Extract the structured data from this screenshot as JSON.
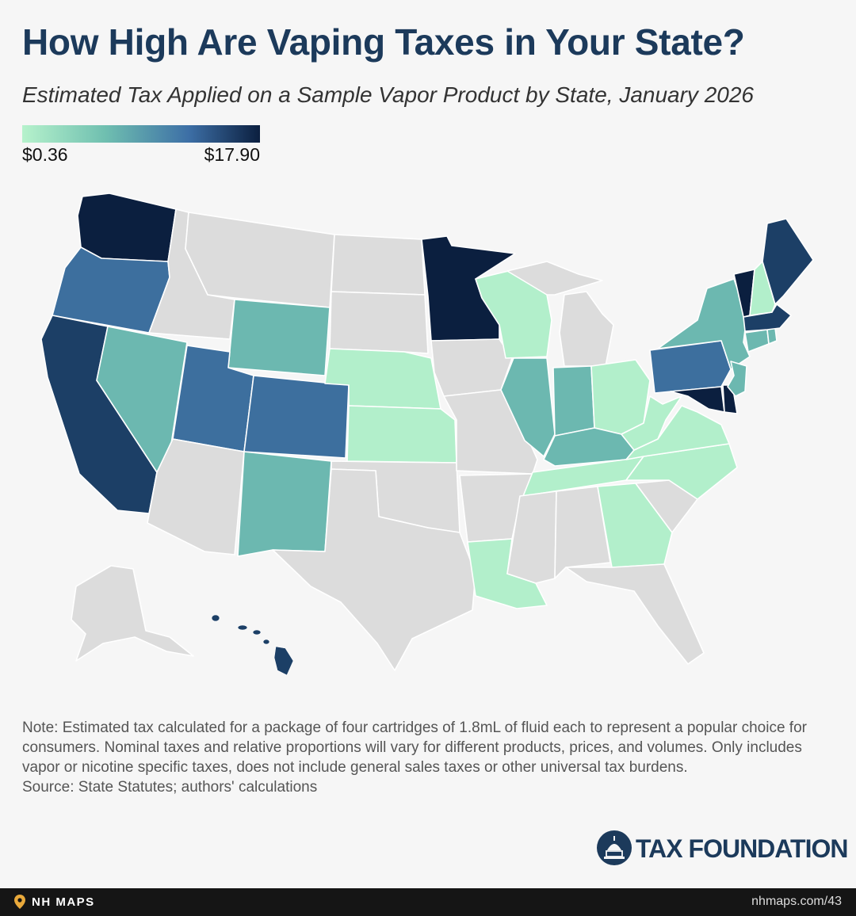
{
  "title": "How High Are Vaping Taxes in Your State?",
  "subtitle": "Estimated Tax Applied on a Sample Vapor Product by State, January 2026",
  "legend": {
    "min_label": "$0.36",
    "max_label": "$17.90",
    "min_value": 0.36,
    "max_value": 17.9,
    "gradient_colors": [
      "#b6f2cc",
      "#6fbfb0",
      "#3d6fa6",
      "#0b1f3f"
    ]
  },
  "map": {
    "no_tax_color": "#dcdcdc",
    "states_by_shade": {
      "darkest": [
        "WA",
        "MN",
        "VT",
        "MD",
        "DE"
      ],
      "dark": [
        "CA",
        "ME",
        "MA",
        "HI"
      ],
      "medium": [
        "OR",
        "UT",
        "CO",
        "PA"
      ],
      "medium_light": [
        "IL",
        "NV",
        "NY",
        "KY",
        "IN",
        "RI",
        "CT",
        "NJ",
        "WY",
        "NM"
      ],
      "light": [
        "NE",
        "KS",
        "WI",
        "OH",
        "WV",
        "VA",
        "NC",
        "TN",
        "GA",
        "LA",
        "NH"
      ],
      "no_tax": [
        "MT",
        "ID",
        "ND",
        "SD",
        "IA",
        "MO",
        "OK",
        "TX",
        "AR",
        "MS",
        "AL",
        "FL",
        "SC",
        "MI",
        "AZ",
        "AK"
      ]
    }
  },
  "note": {
    "text": "Note: Estimated tax calculated for a package of four cartridges of 1.8mL of fluid each to represent a popular choice for consumers. Nominal taxes and relative proportions will vary for different products, prices, and volumes. Only includes vapor or nicotine specific taxes, does not include general sales taxes or other universal tax burdens.",
    "source": "Source: State Statutes; authors' calculations"
  },
  "brand": {
    "name": "TAX FOUNDATION"
  },
  "footer": {
    "left_label": "NH MAPS",
    "right_label": "nhmaps.com/43"
  }
}
